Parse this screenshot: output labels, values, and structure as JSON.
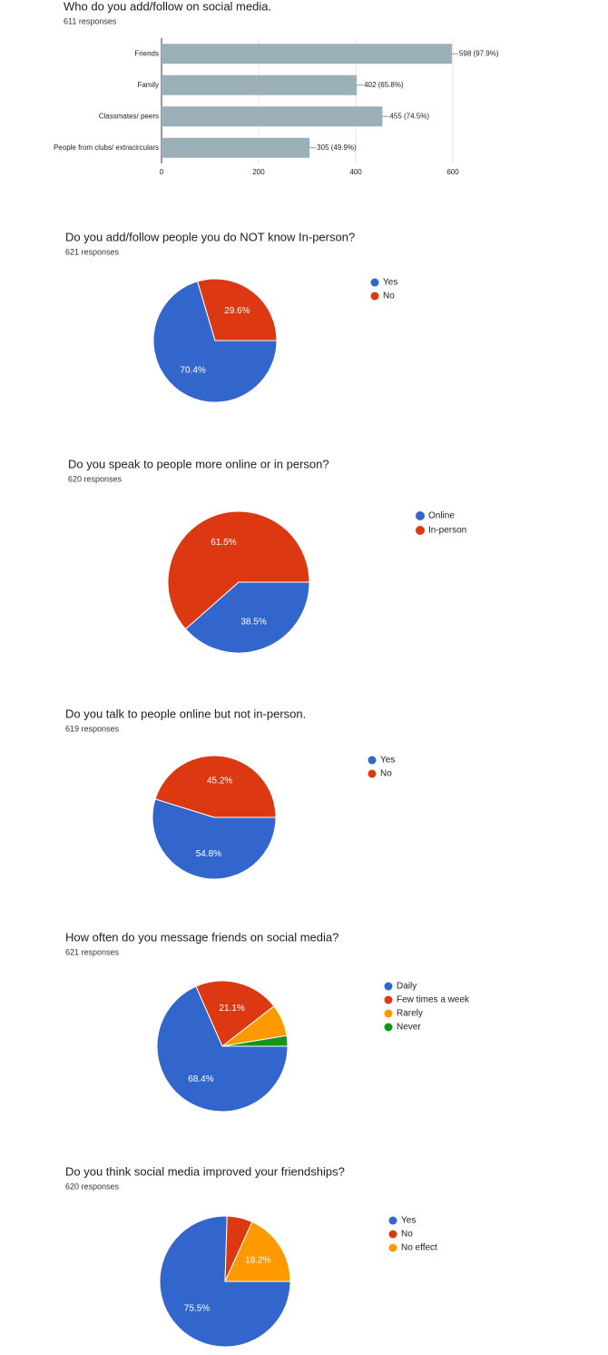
{
  "chart_data": [
    {
      "type": "bar",
      "orientation": "horizontal",
      "title": "Who do you add/follow on social media.",
      "subtitle": "611 responses",
      "categories": [
        "Friends",
        "Family",
        "Classmates/ peers",
        "People from clubs/ extracirculars"
      ],
      "values": [
        598,
        402,
        455,
        305
      ],
      "value_labels": [
        "598 (97.9%)",
        "402 (65.8%)",
        "455 (74.5%)",
        "305 (49.9%)"
      ],
      "color": "#9aafb8",
      "xlim": [
        0,
        600
      ],
      "xticks": [
        0,
        200,
        400,
        600
      ],
      "grid": true
    },
    {
      "type": "pie",
      "title": "Do you add/follow people you do NOT know In-person?",
      "subtitle": "621 responses",
      "categories": [
        "Yes",
        "No"
      ],
      "values": [
        70.4,
        29.6
      ],
      "value_labels": [
        "70.4%",
        "29.6%"
      ],
      "colors": [
        "#3366cc",
        "#dc3912"
      ],
      "legend": "right"
    },
    {
      "type": "pie",
      "title": "Do you speak to people more online or in person?",
      "subtitle": "620 responses",
      "categories": [
        "Online",
        "In-person"
      ],
      "values": [
        38.5,
        61.5
      ],
      "value_labels": [
        "38.5%",
        "61.5%"
      ],
      "colors": [
        "#3366cc",
        "#dc3912"
      ],
      "legend": "right"
    },
    {
      "type": "pie",
      "title": "Do you talk to people online but not in-person.",
      "subtitle": "619 responses",
      "categories": [
        "Yes",
        "No"
      ],
      "values": [
        54.8,
        45.2
      ],
      "value_labels": [
        "54.8%",
        "45.2%"
      ],
      "colors": [
        "#3366cc",
        "#dc3912"
      ],
      "legend": "right"
    },
    {
      "type": "pie",
      "title": "How often do you message friends on social media?",
      "subtitle": "621 responses",
      "categories": [
        "Daily",
        "Few times a week",
        "Rarely",
        "Never"
      ],
      "values": [
        68.4,
        21.1,
        7.9,
        2.6
      ],
      "value_labels": [
        "68.4%",
        "21.1%",
        null,
        null
      ],
      "colors": [
        "#3366cc",
        "#dc3912",
        "#ff9900",
        "#109618"
      ],
      "legend": "right"
    },
    {
      "type": "pie",
      "title": "Do you think social media improved your friendships?",
      "subtitle": "620 responses",
      "categories": [
        "Yes",
        "No",
        "No effect"
      ],
      "values": [
        75.5,
        6.3,
        18.2
      ],
      "value_labels": [
        "75.5%",
        null,
        "18.2%"
      ],
      "colors": [
        "#3366cc",
        "#dc3912",
        "#ff9900"
      ],
      "legend": "right"
    }
  ]
}
